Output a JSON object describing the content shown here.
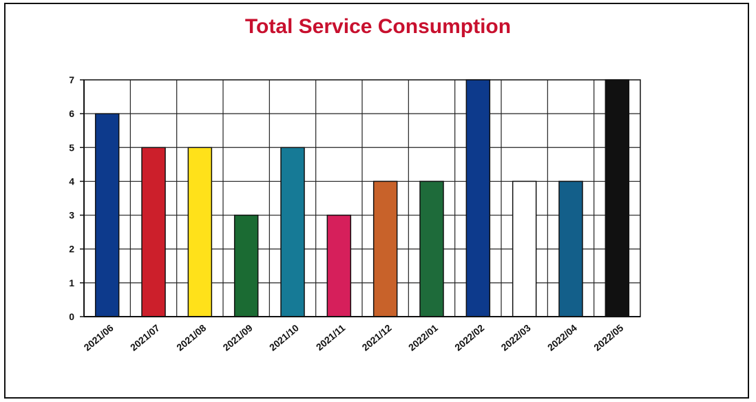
{
  "chart_data": {
    "type": "bar",
    "title": "Total Service Consumption",
    "xlabel": "",
    "ylabel": "",
    "ylim": [
      0,
      7
    ],
    "yticks": [
      0,
      1,
      2,
      3,
      4,
      5,
      6,
      7
    ],
    "grid": true,
    "legend": "none",
    "categories": [
      "2021/06",
      "2021/07",
      "2021/08",
      "2021/09",
      "2021/10",
      "2021/11",
      "2021/12",
      "2022/01",
      "2022/02",
      "2022/03",
      "2022/04",
      "2022/05"
    ],
    "values": [
      6,
      5,
      5,
      3,
      5,
      3,
      4,
      4,
      7,
      4,
      4,
      7
    ],
    "colors": [
      "#0d3a8c",
      "#cc1f2b",
      "#ffe11a",
      "#1b6b33",
      "#167a96",
      "#d61f5b",
      "#c8622a",
      "#1e6b3a",
      "#0d3a8c",
      "#ffffff",
      "#135f8a",
      "#111111"
    ]
  }
}
